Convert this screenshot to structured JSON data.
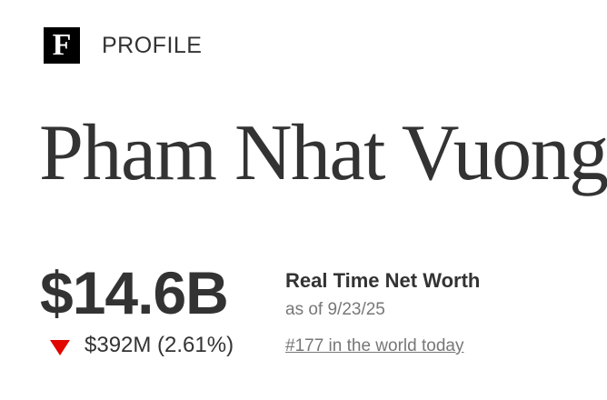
{
  "header": {
    "logo_letter": "F",
    "section_label": "PROFILE"
  },
  "profile": {
    "name": "Pham Nhat Vuong",
    "net_worth": "$14.6B",
    "change_direction": "down",
    "change_icon": "triangle-down-icon",
    "change_color": "#e10600",
    "change": "$392M (2.61%)",
    "net_worth_label": "Real Time Net Worth",
    "as_of": "as of 9/23/25",
    "rank_link": "#177 in the world today"
  }
}
